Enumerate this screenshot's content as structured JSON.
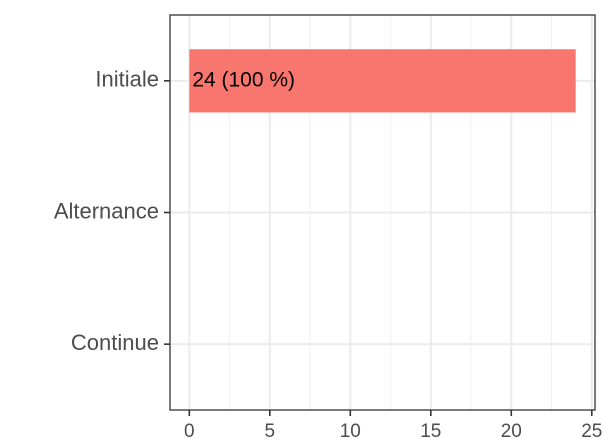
{
  "chart_data": {
    "type": "bar",
    "orientation": "horizontal",
    "categories": [
      "Initiale",
      "Alternance",
      "Continue"
    ],
    "values": [
      24,
      0,
      0
    ],
    "data_labels": [
      "24 (100 %)",
      "",
      ""
    ],
    "xticks": [
      0,
      5,
      10,
      15,
      20,
      25
    ],
    "xlim": [
      -1.2,
      25.2
    ],
    "grid": true,
    "legend": "none",
    "title": "",
    "xlabel": "",
    "ylabel": "",
    "bar_color": "#F8766D"
  }
}
